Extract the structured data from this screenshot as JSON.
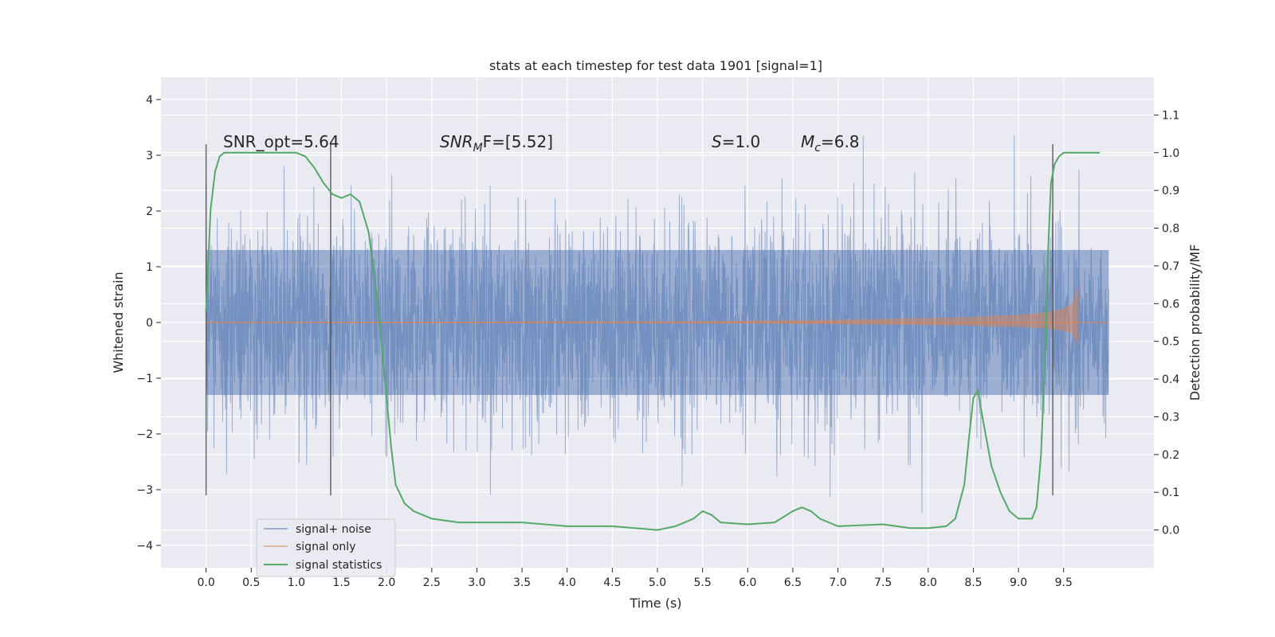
{
  "chart_data": {
    "type": "line",
    "title": "stats at each timestep for test data 1901 [signal=1]",
    "xlabel": "Time (s)",
    "ylabel": "Whitened strain",
    "ylabel_right": "Detection probability/MF",
    "xlim": [
      -0.5,
      10.5
    ],
    "ylim": [
      -4.4,
      4.4
    ],
    "ylim_right": [
      -0.1,
      1.2
    ],
    "grid": true,
    "legend_position": "lower-left",
    "x_ticks": [
      "0.0",
      "0.5",
      "1.0",
      "1.5",
      "2.0",
      "2.5",
      "3.0",
      "3.5",
      "4.0",
      "4.5",
      "5.0",
      "5.5",
      "6.0",
      "6.5",
      "7.0",
      "7.5",
      "8.0",
      "8.5",
      "9.0",
      "9.5"
    ],
    "y_ticks": [
      "4",
      "3",
      "2",
      "1",
      "0",
      "−1",
      "−2",
      "−3",
      "−4"
    ],
    "y_ticks_right": [
      "1.1",
      "1.0",
      "0.9",
      "0.8",
      "0.7",
      "0.6",
      "0.5",
      "0.4",
      "0.3",
      "0.2",
      "0.1",
      "0.0"
    ],
    "annotations": {
      "snr_opt": "SNR_opt=5.64",
      "snr_mf_main": "SNR",
      "snr_mf_sub": "M",
      "snr_mf_rest": "F=[5.52]",
      "s_main": "S",
      "s_rest": "=1.0",
      "mc_main": "M",
      "mc_sub": "c",
      "mc_rest": "=6.8"
    },
    "vertical_markers": [
      0.0,
      1.38,
      9.38
    ],
    "series": [
      {
        "name": "signal+ noise",
        "color": "#4c72b0",
        "axis": "left",
        "band_x": [
          0.0,
          10.0
        ],
        "band_y": [
          -1.3,
          1.3
        ]
      },
      {
        "name": "signal only",
        "color": "#dd8452",
        "axis": "left",
        "envelope_x": [
          0.0,
          5.0,
          6.0,
          7.0,
          8.0,
          8.5,
          9.0,
          9.3,
          9.5,
          9.6,
          9.66
        ],
        "envelope_y": [
          0.01,
          0.02,
          0.03,
          0.05,
          0.08,
          0.1,
          0.14,
          0.18,
          0.25,
          0.35,
          0.65
        ]
      },
      {
        "name": "signal statistics",
        "color": "#55a868",
        "axis": "right",
        "x": [
          0.0,
          0.05,
          0.1,
          0.15,
          0.2,
          0.3,
          0.5,
          0.8,
          1.0,
          1.1,
          1.2,
          1.3,
          1.4,
          1.5,
          1.6,
          1.7,
          1.8,
          1.85,
          1.9,
          1.95,
          2.0,
          2.05,
          2.1,
          2.2,
          2.3,
          2.5,
          2.8,
          3.0,
          3.5,
          4.0,
          4.5,
          5.0,
          5.2,
          5.4,
          5.5,
          5.6,
          5.7,
          6.0,
          6.3,
          6.5,
          6.6,
          6.7,
          6.8,
          7.0,
          7.5,
          7.8,
          8.0,
          8.2,
          8.3,
          8.4,
          8.45,
          8.5,
          8.55,
          8.6,
          8.7,
          8.8,
          8.9,
          9.0,
          9.1,
          9.15,
          9.2,
          9.25,
          9.3,
          9.33,
          9.36,
          9.4,
          9.45,
          9.5,
          9.6,
          9.7,
          9.8,
          9.9
        ],
        "y": [
          0.58,
          0.85,
          0.95,
          0.99,
          1.0,
          1.0,
          1.0,
          1.0,
          1.0,
          0.99,
          0.96,
          0.92,
          0.89,
          0.88,
          0.89,
          0.87,
          0.79,
          0.7,
          0.6,
          0.48,
          0.35,
          0.22,
          0.12,
          0.07,
          0.05,
          0.03,
          0.02,
          0.02,
          0.02,
          0.01,
          0.01,
          0.0,
          0.01,
          0.03,
          0.05,
          0.04,
          0.02,
          0.015,
          0.02,
          0.05,
          0.06,
          0.05,
          0.03,
          0.01,
          0.015,
          0.005,
          0.005,
          0.01,
          0.03,
          0.12,
          0.24,
          0.35,
          0.37,
          0.3,
          0.17,
          0.1,
          0.05,
          0.03,
          0.03,
          0.03,
          0.06,
          0.2,
          0.5,
          0.75,
          0.92,
          0.97,
          0.99,
          1.0,
          1.0,
          1.0,
          1.0,
          1.0
        ]
      }
    ]
  }
}
